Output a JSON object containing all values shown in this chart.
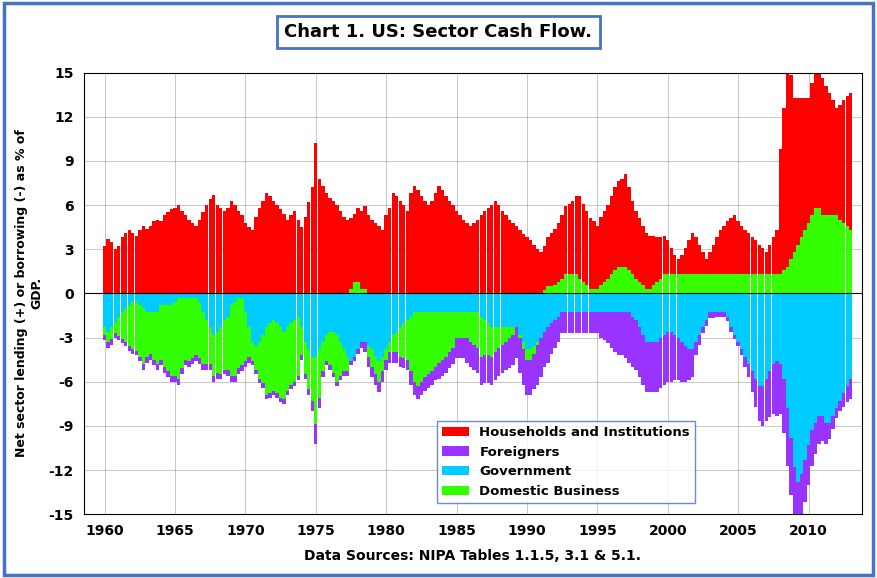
{
  "title": "Chart 1. US: Sector Cash Flow.",
  "ylabel": "Net sector lending (+) or borrowing (-) as % of\nGDP.",
  "xlabel": "Data Sources: NIPA Tables 1.1.5, 3.1 & 5.1.",
  "ylim": [
    -15,
    15
  ],
  "yticks": [
    -15,
    -12,
    -9,
    -6,
    -3,
    0,
    3,
    6,
    9,
    12,
    15
  ],
  "colors": {
    "households": "#FF0000",
    "foreigners": "#9933FF",
    "government": "#00CCFF",
    "domestic_business": "#33FF00"
  },
  "background_outer": "#FFFFFF",
  "border_color": "#4472C4",
  "years": [
    1960.0,
    1960.25,
    1960.5,
    1960.75,
    1961.0,
    1961.25,
    1961.5,
    1961.75,
    1962.0,
    1962.25,
    1962.5,
    1962.75,
    1963.0,
    1963.25,
    1963.5,
    1963.75,
    1964.0,
    1964.25,
    1964.5,
    1964.75,
    1965.0,
    1965.25,
    1965.5,
    1965.75,
    1966.0,
    1966.25,
    1966.5,
    1966.75,
    1967.0,
    1967.25,
    1967.5,
    1967.75,
    1968.0,
    1968.25,
    1968.5,
    1968.75,
    1969.0,
    1969.25,
    1969.5,
    1969.75,
    1970.0,
    1970.25,
    1970.5,
    1970.75,
    1971.0,
    1971.25,
    1971.5,
    1971.75,
    1972.0,
    1972.25,
    1972.5,
    1972.75,
    1973.0,
    1973.25,
    1973.5,
    1973.75,
    1974.0,
    1974.25,
    1974.5,
    1974.75,
    1975.0,
    1975.25,
    1975.5,
    1975.75,
    1976.0,
    1976.25,
    1976.5,
    1976.75,
    1977.0,
    1977.25,
    1977.5,
    1977.75,
    1978.0,
    1978.25,
    1978.5,
    1978.75,
    1979.0,
    1979.25,
    1979.5,
    1979.75,
    1980.0,
    1980.25,
    1980.5,
    1980.75,
    1981.0,
    1981.25,
    1981.5,
    1981.75,
    1982.0,
    1982.25,
    1982.5,
    1982.75,
    1983.0,
    1983.25,
    1983.5,
    1983.75,
    1984.0,
    1984.25,
    1984.5,
    1984.75,
    1985.0,
    1985.25,
    1985.5,
    1985.75,
    1986.0,
    1986.25,
    1986.5,
    1986.75,
    1987.0,
    1987.25,
    1987.5,
    1987.75,
    1988.0,
    1988.25,
    1988.5,
    1988.75,
    1989.0,
    1989.25,
    1989.5,
    1989.75,
    1990.0,
    1990.25,
    1990.5,
    1990.75,
    1991.0,
    1991.25,
    1991.5,
    1991.75,
    1992.0,
    1992.25,
    1992.5,
    1992.75,
    1993.0,
    1993.25,
    1993.5,
    1993.75,
    1994.0,
    1994.25,
    1994.5,
    1994.75,
    1995.0,
    1995.25,
    1995.5,
    1995.75,
    1996.0,
    1996.25,
    1996.5,
    1996.75,
    1997.0,
    1997.25,
    1997.5,
    1997.75,
    1998.0,
    1998.25,
    1998.5,
    1998.75,
    1999.0,
    1999.25,
    1999.5,
    1999.75,
    2000.0,
    2000.25,
    2000.5,
    2000.75,
    2001.0,
    2001.25,
    2001.5,
    2001.75,
    2002.0,
    2002.25,
    2002.5,
    2002.75,
    2003.0,
    2003.25,
    2003.5,
    2003.75,
    2004.0,
    2004.25,
    2004.5,
    2004.75,
    2005.0,
    2005.25,
    2005.5,
    2005.75,
    2006.0,
    2006.25,
    2006.5,
    2006.75,
    2007.0,
    2007.25,
    2007.5,
    2007.75,
    2008.0,
    2008.25,
    2008.5,
    2008.75,
    2009.0,
    2009.25,
    2009.5,
    2009.75,
    2010.0,
    2010.25,
    2010.5,
    2010.75,
    2011.0,
    2011.25,
    2011.5,
    2011.75,
    2012.0,
    2012.25,
    2012.5,
    2012.75,
    2013.0
  ],
  "households": [
    3.2,
    3.7,
    3.5,
    3.0,
    3.2,
    3.8,
    4.1,
    4.3,
    4.1,
    3.9,
    4.3,
    4.6,
    4.4,
    4.6,
    4.9,
    5.0,
    4.9,
    5.3,
    5.5,
    5.7,
    5.8,
    6.0,
    5.6,
    5.3,
    5.0,
    4.8,
    4.6,
    5.0,
    5.5,
    6.0,
    6.4,
    6.7,
    6.0,
    5.8,
    5.6,
    5.8,
    6.3,
    6.0,
    5.6,
    5.3,
    4.8,
    4.5,
    4.3,
    5.2,
    5.8,
    6.3,
    6.8,
    6.6,
    6.3,
    6.0,
    5.7,
    5.4,
    5.0,
    5.3,
    5.6,
    5.0,
    4.5,
    5.2,
    6.2,
    7.2,
    10.2,
    7.8,
    7.3,
    6.8,
    6.5,
    6.3,
    6.0,
    5.6,
    5.2,
    5.0,
    4.8,
    4.6,
    5.0,
    5.3,
    5.6,
    5.3,
    5.0,
    4.8,
    4.6,
    4.3,
    5.3,
    5.8,
    6.8,
    6.6,
    6.3,
    6.0,
    5.6,
    6.8,
    7.3,
    7.0,
    6.6,
    6.3,
    6.0,
    6.3,
    6.8,
    7.3,
    7.0,
    6.6,
    6.3,
    6.0,
    5.6,
    5.3,
    5.0,
    4.8,
    4.6,
    4.8,
    5.0,
    5.3,
    5.6,
    5.8,
    6.0,
    6.3,
    6.0,
    5.6,
    5.3,
    5.0,
    4.8,
    4.6,
    4.3,
    4.0,
    3.8,
    3.6,
    3.3,
    3.0,
    2.8,
    3.0,
    3.3,
    3.6,
    3.8,
    4.0,
    4.3,
    4.6,
    4.8,
    5.0,
    5.3,
    5.6,
    5.3,
    5.0,
    4.8,
    4.6,
    4.3,
    4.6,
    4.8,
    5.0,
    5.3,
    5.6,
    5.8,
    6.0,
    6.3,
    5.6,
    5.0,
    4.6,
    4.3,
    4.0,
    3.8,
    3.6,
    3.3,
    3.0,
    2.8,
    2.6,
    2.3,
    1.8,
    1.3,
    1.0,
    1.3,
    1.8,
    2.3,
    2.8,
    2.5,
    2.0,
    1.5,
    1.0,
    1.5,
    2.0,
    2.5,
    3.0,
    3.3,
    3.6,
    3.8,
    4.0,
    3.6,
    3.3,
    3.0,
    2.8,
    2.5,
    2.3,
    2.0,
    1.8,
    1.5,
    2.0,
    2.5,
    3.0,
    8.5,
    11.0,
    13.5,
    12.5,
    10.5,
    10.0,
    9.5,
    9.0,
    8.5,
    9.0,
    9.3,
    9.6,
    9.3,
    8.8,
    8.3,
    7.8,
    7.3,
    7.8,
    8.3,
    8.8,
    9.3
  ],
  "foreigners": [
    -0.4,
    -0.4,
    -0.4,
    -0.3,
    -0.3,
    -0.3,
    -0.3,
    -0.3,
    -0.3,
    -0.3,
    -0.3,
    -0.4,
    -0.4,
    -0.4,
    -0.4,
    -0.4,
    -0.4,
    -0.4,
    -0.4,
    -0.4,
    -0.4,
    -0.4,
    -0.4,
    -0.4,
    -0.4,
    -0.4,
    -0.4,
    -0.4,
    -0.4,
    -0.4,
    -0.4,
    -0.4,
    -0.4,
    -0.3,
    -0.3,
    -0.4,
    -0.4,
    -0.4,
    -0.4,
    -0.4,
    -0.4,
    -0.4,
    -0.3,
    -0.3,
    -0.3,
    -0.3,
    -0.3,
    -0.3,
    -0.3,
    -0.3,
    -0.3,
    -0.3,
    -0.3,
    -0.3,
    -0.3,
    -0.3,
    -0.3,
    -0.3,
    -0.4,
    -0.7,
    -1.3,
    -0.7,
    -0.4,
    -0.3,
    -0.3,
    -0.3,
    -0.3,
    -0.3,
    -0.3,
    -0.3,
    -0.3,
    -0.3,
    -0.3,
    -0.4,
    -0.7,
    -0.7,
    -0.7,
    -0.7,
    -0.7,
    -0.7,
    -0.7,
    -0.7,
    -0.7,
    -0.7,
    -0.7,
    -0.7,
    -0.7,
    -0.9,
    -0.9,
    -0.9,
    -0.9,
    -0.9,
    -0.9,
    -0.9,
    -0.9,
    -1.1,
    -1.1,
    -1.1,
    -1.1,
    -1.1,
    -1.4,
    -1.4,
    -1.4,
    -1.7,
    -1.7,
    -1.7,
    -1.7,
    -1.9,
    -1.9,
    -1.9,
    -1.9,
    -1.9,
    -1.9,
    -1.9,
    -1.9,
    -2.1,
    -2.1,
    -2.1,
    -2.4,
    -2.4,
    -2.4,
    -2.4,
    -2.4,
    -2.7,
    -2.7,
    -2.4,
    -2.4,
    -2.1,
    -1.9,
    -1.7,
    -1.4,
    -1.4,
    -1.4,
    -1.4,
    -1.4,
    -1.4,
    -1.4,
    -1.4,
    -1.4,
    -1.4,
    -1.4,
    -1.7,
    -1.9,
    -2.1,
    -2.4,
    -2.7,
    -2.9,
    -2.9,
    -3.1,
    -3.4,
    -3.4,
    -3.4,
    -3.4,
    -3.4,
    -3.4,
    -3.4,
    -3.4,
    -3.4,
    -3.4,
    -3.4,
    -3.4,
    -3.4,
    -3.1,
    -2.9,
    -2.7,
    -2.4,
    -2.1,
    -1.9,
    -0.9,
    -0.7,
    -0.4,
    -0.4,
    -0.4,
    -0.4,
    -0.3,
    -0.3,
    -0.3,
    -0.3,
    -0.3,
    -0.3,
    -0.3,
    -0.4,
    -0.7,
    -0.9,
    -1.4,
    -1.9,
    -2.4,
    -2.7,
    -2.9,
    -3.1,
    -3.4,
    -3.7,
    -3.4,
    -3.7,
    -3.9,
    -3.9,
    -3.7,
    -3.4,
    -3.1,
    -2.9,
    -2.7,
    -2.4,
    -2.1,
    -1.9,
    -1.7,
    -1.4,
    -1.1,
    -0.9,
    -0.7,
    -0.7,
    -0.9,
    -1.1,
    -1.4
  ],
  "government": [
    -2.3,
    -2.6,
    -2.3,
    -2.0,
    -1.6,
    -1.3,
    -1.0,
    -0.8,
    -0.6,
    -0.6,
    -0.8,
    -1.0,
    -1.3,
    -1.3,
    -1.3,
    -1.3,
    -0.8,
    -0.8,
    -0.8,
    -0.8,
    -0.6,
    -0.3,
    -0.3,
    -0.3,
    -0.3,
    -0.3,
    -0.3,
    -0.6,
    -1.3,
    -1.8,
    -2.3,
    -2.8,
    -2.6,
    -2.3,
    -1.8,
    -1.6,
    -0.8,
    -0.6,
    -0.3,
    -0.3,
    -1.3,
    -2.3,
    -3.3,
    -3.6,
    -3.3,
    -2.8,
    -2.3,
    -2.0,
    -1.8,
    -2.0,
    -2.3,
    -2.6,
    -2.3,
    -2.0,
    -1.8,
    -1.6,
    -2.3,
    -3.3,
    -3.8,
    -4.3,
    -4.3,
    -3.8,
    -3.3,
    -2.8,
    -2.6,
    -2.6,
    -2.8,
    -3.3,
    -3.8,
    -4.3,
    -4.6,
    -4.3,
    -3.8,
    -3.3,
    -3.3,
    -3.6,
    -3.8,
    -4.3,
    -4.6,
    -4.3,
    -3.8,
    -3.3,
    -2.8,
    -2.6,
    -2.3,
    -2.0,
    -1.8,
    -1.6,
    -1.3,
    -1.3,
    -1.3,
    -1.3,
    -1.3,
    -1.3,
    -1.3,
    -1.3,
    -1.3,
    -1.3,
    -1.3,
    -1.3,
    -1.3,
    -1.3,
    -1.3,
    -1.3,
    -1.3,
    -1.3,
    -1.3,
    -1.6,
    -1.8,
    -2.0,
    -2.3,
    -2.3,
    -2.3,
    -2.3,
    -2.3,
    -2.3,
    -2.3,
    -2.3,
    -2.8,
    -3.3,
    -3.8,
    -3.8,
    -3.6,
    -3.3,
    -3.0,
    -2.6,
    -2.3,
    -2.0,
    -1.8,
    -1.6,
    -1.3,
    -1.3,
    -1.3,
    -1.3,
    -1.3,
    -1.3,
    -1.3,
    -1.3,
    -1.3,
    -1.3,
    -1.3,
    -1.3,
    -1.3,
    -1.3,
    -1.3,
    -1.3,
    -1.3,
    -1.3,
    -1.3,
    -1.3,
    -1.6,
    -1.8,
    -2.3,
    -2.8,
    -3.3,
    -3.3,
    -3.3,
    -3.3,
    -3.0,
    -2.8,
    -2.6,
    -2.6,
    -2.8,
    -3.0,
    -3.3,
    -3.6,
    -3.8,
    -3.8,
    -3.3,
    -2.8,
    -2.3,
    -1.8,
    -1.3,
    -1.3,
    -1.3,
    -1.3,
    -1.3,
    -1.6,
    -2.3,
    -2.8,
    -3.3,
    -3.8,
    -4.3,
    -4.8,
    -5.3,
    -5.8,
    -6.3,
    -6.3,
    -5.8,
    -5.3,
    -4.8,
    -4.6,
    -4.8,
    -5.8,
    -7.8,
    -9.8,
    -11.8,
    -12.8,
    -12.3,
    -11.3,
    -10.3,
    -9.3,
    -8.8,
    -8.3,
    -8.3,
    -8.8,
    -8.8,
    -8.3,
    -7.8,
    -7.3,
    -6.8,
    -6.3,
    -5.8
  ],
  "domestic_business": [
    -0.5,
    -0.7,
    -0.8,
    -0.7,
    -1.3,
    -1.8,
    -2.3,
    -2.8,
    -3.2,
    -3.3,
    -3.5,
    -3.8,
    -3.0,
    -2.8,
    -3.2,
    -3.5,
    -3.7,
    -4.2,
    -4.5,
    -4.8,
    -5.0,
    -5.5,
    -4.8,
    -4.2,
    -4.3,
    -4.1,
    -3.9,
    -3.8,
    -3.5,
    -3.0,
    -2.5,
    -2.8,
    -2.8,
    -3.2,
    -3.4,
    -3.6,
    -4.8,
    -5.0,
    -4.8,
    -4.6,
    -3.3,
    -2.0,
    -1.3,
    -1.6,
    -2.5,
    -3.3,
    -4.6,
    -4.8,
    -4.8,
    -4.8,
    -4.8,
    -4.6,
    -4.3,
    -4.2,
    -4.2,
    -4.0,
    -1.9,
    -2.2,
    -2.7,
    -3.0,
    -4.6,
    -3.3,
    -2.0,
    -1.8,
    -2.3,
    -2.8,
    -3.2,
    -2.3,
    -1.5,
    -1.0,
    0.3,
    0.8,
    0.8,
    0.3,
    0.3,
    -0.7,
    -1.2,
    -1.2,
    -1.4,
    -1.0,
    -0.7,
    -0.7,
    -1.2,
    -1.4,
    -2.0,
    -2.4,
    -2.7,
    -3.7,
    -4.7,
    -5.0,
    -4.7,
    -4.4,
    -4.2,
    -4.0,
    -3.7,
    -3.4,
    -3.2,
    -3.0,
    -2.7,
    -2.4,
    -1.7,
    -1.7,
    -1.7,
    -1.7,
    -2.0,
    -2.2,
    -2.4,
    -2.7,
    -2.4,
    -2.2,
    -2.0,
    -1.7,
    -1.4,
    -1.2,
    -1.0,
    -0.7,
    -0.5,
    0.0,
    -0.2,
    -0.5,
    -0.7,
    -0.7,
    -0.5,
    -0.2,
    0.0,
    0.2,
    0.5,
    0.5,
    0.6,
    0.8,
    1.0,
    1.3,
    1.3,
    1.3,
    1.3,
    1.0,
    0.8,
    0.6,
    0.3,
    0.3,
    0.3,
    0.6,
    0.8,
    1.0,
    1.3,
    1.6,
    1.8,
    1.8,
    1.8,
    1.6,
    1.3,
    1.0,
    0.8,
    0.6,
    0.3,
    0.3,
    0.6,
    0.8,
    1.0,
    1.3,
    1.3,
    1.3,
    1.3,
    1.3,
    1.3,
    1.3,
    1.3,
    1.3,
    1.3,
    1.3,
    1.3,
    1.3,
    1.3,
    1.3,
    1.3,
    1.3,
    1.3,
    1.3,
    1.3,
    1.3,
    1.3,
    1.3,
    1.3,
    1.3,
    1.3,
    1.3,
    1.3,
    1.3,
    1.3,
    1.3,
    1.3,
    1.3,
    1.3,
    1.6,
    1.8,
    2.3,
    2.8,
    3.3,
    3.8,
    4.3,
    4.8,
    5.3,
    5.8,
    5.8,
    5.3,
    5.3,
    5.3,
    5.3,
    5.3,
    5.0,
    4.8,
    4.6,
    4.3
  ]
}
